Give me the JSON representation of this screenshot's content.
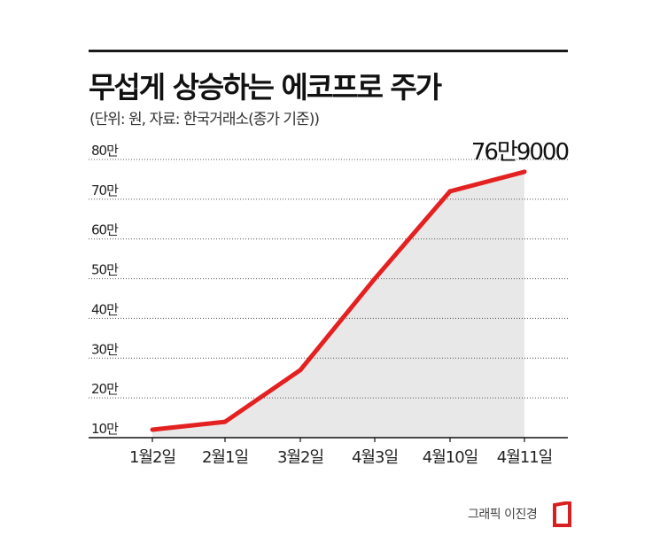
{
  "header": {
    "title": "무섭게 상승하는 에코프로 주가",
    "subtitle": "(단위: 원, 자료: 한국거래소(종가 기준))"
  },
  "footer": {
    "credit": "그래픽 이진경"
  },
  "colors": {
    "line": "#e42121",
    "fill": "#e8e8e8",
    "grid": "#555555",
    "text": "#222222",
    "logo": "#d92020"
  },
  "chart_data": {
    "type": "area",
    "title": "무섭게 상승하는 에코프로 주가",
    "xlabel": "",
    "ylabel": "",
    "categories": [
      "1월2일",
      "2월1일",
      "3월2일",
      "4월3일",
      "4월10일",
      "4월11일"
    ],
    "values": [
      12000,
      14000,
      27000,
      50000,
      72000,
      76900
    ],
    "ylim": [
      10000,
      80000
    ],
    "y_ticks": [
      10000,
      20000,
      30000,
      40000,
      50000,
      60000,
      70000,
      80000
    ],
    "y_tick_labels": [
      "10만",
      "20만",
      "30만",
      "40만",
      "50만",
      "60만",
      "70만",
      "80만"
    ],
    "annotation": "76만9000",
    "grid": true,
    "legend": "none"
  }
}
